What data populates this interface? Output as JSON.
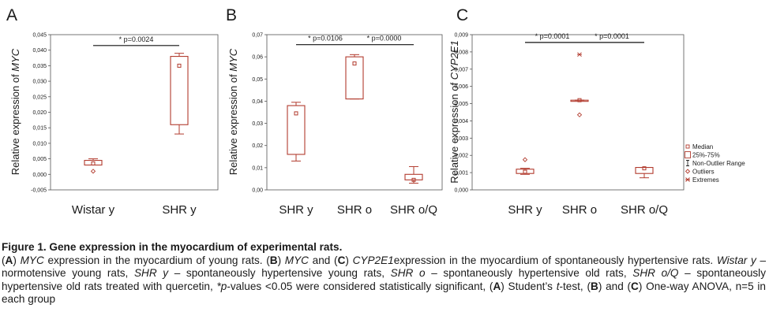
{
  "colors": {
    "box": "#b23b2e",
    "text": "#1a1a1a",
    "frame": "#555555"
  },
  "legend": {
    "items": [
      {
        "symbol": "median",
        "label": "Median"
      },
      {
        "symbol": "box",
        "label": "25%-75%"
      },
      {
        "symbol": "whisker",
        "label": "Non-Outlier Range"
      },
      {
        "symbol": "outlier",
        "label": "Outliers"
      },
      {
        "symbol": "extreme",
        "label": "Extremes"
      }
    ]
  },
  "chart_data": [
    {
      "type": "boxplot",
      "panel_label": "A",
      "ylabel_prefix": "Relative expression of ",
      "ylabel_gene": "MYC",
      "ylim": [
        -0.005,
        0.045
      ],
      "yticks": [
        "-0,005",
        "0,000",
        "0,005",
        "0,010",
        "0,015",
        "0,020",
        "0,025",
        "0,030",
        "0,035",
        "0,040",
        "0,045"
      ],
      "categories": [
        "Wistar y",
        "SHR y"
      ],
      "boxes": [
        {
          "median": 0.0035,
          "q1": 0.003,
          "q3": 0.0045,
          "min": 0.003,
          "max": 0.005,
          "outliers": [
            0.001
          ],
          "extremes": []
        },
        {
          "median": 0.035,
          "q1": 0.016,
          "q3": 0.038,
          "min": 0.013,
          "max": 0.039,
          "outliers": [],
          "extremes": []
        }
      ],
      "annotations": [
        {
          "from": 0,
          "to": 1,
          "y": 0.0415,
          "text": "* p=0.0024"
        }
      ]
    },
    {
      "type": "boxplot",
      "panel_label": "B",
      "ylabel_prefix": "Relative expression of ",
      "ylabel_gene": "MYC",
      "ylim": [
        0,
        0.07
      ],
      "yticks": [
        "0,00",
        "0,01",
        "0,02",
        "0,03",
        "0,04",
        "0,05",
        "0,06",
        "0,07"
      ],
      "categories": [
        "SHR y",
        "SHR o",
        "SHR o/Q"
      ],
      "boxes": [
        {
          "median": 0.0345,
          "q1": 0.016,
          "q3": 0.038,
          "min": 0.013,
          "max": 0.0395,
          "outliers": [],
          "extremes": []
        },
        {
          "median": 0.057,
          "q1": 0.041,
          "q3": 0.06,
          "min": 0.041,
          "max": 0.061,
          "outliers": [],
          "extremes": []
        },
        {
          "median": 0.0045,
          "q1": 0.0045,
          "q3": 0.007,
          "min": 0.003,
          "max": 0.0105,
          "outliers": [],
          "extremes": []
        }
      ],
      "annotations": [
        {
          "from": 0,
          "to": 1,
          "y": 0.0655,
          "text": "* p=0.0106"
        },
        {
          "from": 1,
          "to": 2,
          "y": 0.0655,
          "text": "* p=0.0000"
        }
      ]
    },
    {
      "type": "boxplot",
      "panel_label": "C",
      "ylabel_prefix": "Relative expression of ",
      "ylabel_gene": "CYP2E1",
      "ylim": [
        0,
        0.009
      ],
      "yticks": [
        "0,000",
        "0,001",
        "0,002",
        "0,003",
        "0,004",
        "0,005",
        "0,006",
        "0,007",
        "0,008",
        "0,009"
      ],
      "categories": [
        "SHR y",
        "SHR o",
        "SHR o/Q"
      ],
      "boxes": [
        {
          "median": 0.00105,
          "q1": 0.00095,
          "q3": 0.0012,
          "min": 0.0009,
          "max": 0.00125,
          "outliers": [
            0.00175
          ],
          "extremes": []
        },
        {
          "median": 0.0052,
          "q1": 0.0052,
          "q3": 0.0052,
          "min": 0.0052,
          "max": 0.0052,
          "outliers": [
            0.00435
          ],
          "extremes": [
            0.00785
          ]
        },
        {
          "median": 0.00125,
          "q1": 0.00095,
          "q3": 0.0013,
          "min": 0.0007,
          "max": 0.0013,
          "outliers": [],
          "extremes": []
        }
      ],
      "annotations": [
        {
          "from": 0,
          "to": 1,
          "y": 0.00855,
          "text": "* p=0.0001"
        },
        {
          "from": 1,
          "to": 2,
          "y": 0.00855,
          "text": "* p=0.0001"
        }
      ]
    }
  ],
  "caption": {
    "title": "Figure 1. Gene expression in the myocardium of experimental rats.",
    "segments": [
      {
        "t": "("
      },
      {
        "t": "A",
        "s": "b"
      },
      {
        "t": ") "
      },
      {
        "t": "MYC",
        "s": "i"
      },
      {
        "t": " expression in the myocardium of young rats. ("
      },
      {
        "t": "B",
        "s": "b"
      },
      {
        "t": ") "
      },
      {
        "t": "MYC",
        "s": "i"
      },
      {
        "t": " and ("
      },
      {
        "t": "C",
        "s": "b"
      },
      {
        "t": ") "
      },
      {
        "t": "CYP2E1",
        "s": "i"
      },
      {
        "t": "expression in the myocardium of spontaneously hypertensive rats. "
      },
      {
        "t": "Wistar y",
        "s": "i"
      },
      {
        "t": " – normotensive young rats, "
      },
      {
        "t": "SHR y",
        "s": "i"
      },
      {
        "t": " – spontaneously hypertensive young rats, "
      },
      {
        "t": "SHR o",
        "s": "i"
      },
      {
        "t": " – spontaneously hypertensive old rats, "
      },
      {
        "t": "SHR o/Q",
        "s": "i"
      },
      {
        "t": " – spontaneously hypertensive old rats treated with quercetin, "
      },
      {
        "t": "*p",
        "s": "i"
      },
      {
        "t": "-values <0.05 were considered statistically significant, ("
      },
      {
        "t": "A",
        "s": "b"
      },
      {
        "t": ") Student’s "
      },
      {
        "t": "t",
        "s": "i"
      },
      {
        "t": "-test, ("
      },
      {
        "t": "B",
        "s": "b"
      },
      {
        "t": ") and ("
      },
      {
        "t": "C",
        "s": "b"
      },
      {
        "t": ") One-way ANOVA, n=5 in each group"
      }
    ]
  }
}
